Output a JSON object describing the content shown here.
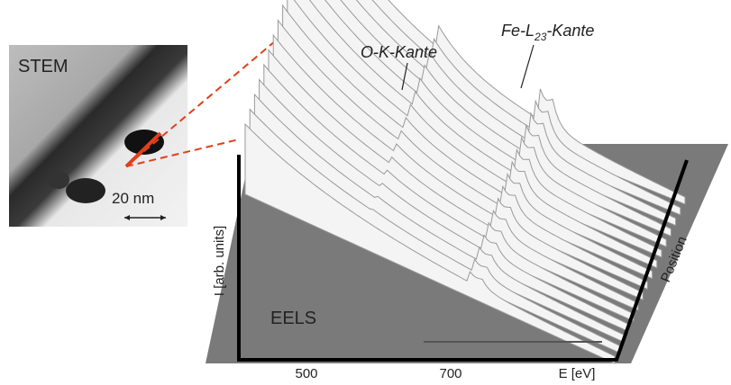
{
  "stem": {
    "title": "STEM",
    "scale": "20 nm"
  },
  "eels": {
    "title": "EELS",
    "y_axis": "I [arb. units]",
    "x_axis": "E [eV]",
    "depth_axis": "Position",
    "x_tick_labels": [
      500,
      700
    ],
    "edges": [
      {
        "label": "O-K-Kante"
      },
      {
        "label_parts": [
          "Fe-L",
          "23",
          "-Kante"
        ]
      }
    ]
  }
}
